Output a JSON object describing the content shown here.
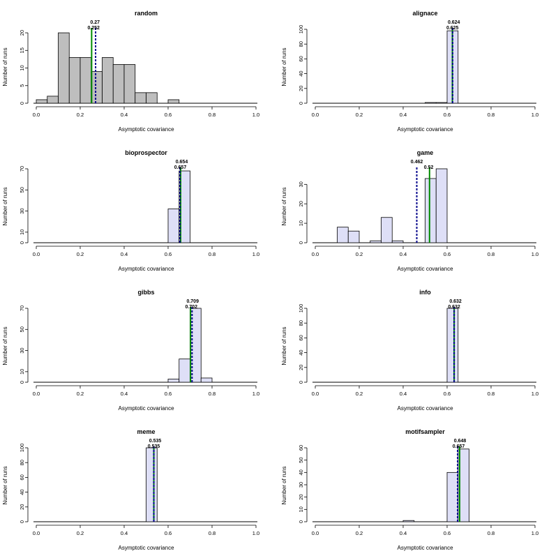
{
  "colors": {
    "random_fill": "#bebebe",
    "method_fill": "#dedff7",
    "bar_stroke": "#000000",
    "median_line": "#008b00",
    "mean_line": "#00008b"
  },
  "chart_data": [
    {
      "type": "bar",
      "title": "random",
      "xlabel": "Asymptotic covariance",
      "ylabel": "Number of runs",
      "xlim": [
        0,
        1
      ],
      "ylim": [
        0,
        21
      ],
      "yticks": [
        0,
        5,
        10,
        15,
        20
      ],
      "xticks": [
        "0.0",
        "0.2",
        "0.4",
        "0.6",
        "0.8",
        "1.0"
      ],
      "bin_width": 0.05,
      "bins_start": [
        0,
        0.05,
        0.1,
        0.15,
        0.2,
        0.25,
        0.3,
        0.35,
        0.4,
        0.45,
        0.5,
        0.55,
        0.6,
        0.65,
        0.7,
        0.75,
        0.8,
        0.85,
        0.9,
        0.95
      ],
      "values": [
        1,
        2,
        20,
        13,
        13,
        9,
        13,
        11,
        11,
        3,
        3,
        0,
        1,
        0,
        0,
        0,
        0,
        0,
        0,
        0
      ],
      "fill": "random",
      "solid_line": 0.252,
      "dotted_line": 0.27,
      "upper_label": "0.27",
      "lower_label": "0.252"
    },
    {
      "type": "bar",
      "title": "alignace",
      "xlabel": "Asymptotic covariance",
      "ylabel": "Number of runs",
      "xlim": [
        0,
        1
      ],
      "ylim": [
        0,
        100
      ],
      "yticks": [
        0,
        20,
        40,
        60,
        80,
        100
      ],
      "xticks": [
        "0.0",
        "0.2",
        "0.4",
        "0.6",
        "0.8",
        "1.0"
      ],
      "bin_width": 0.05,
      "bins_start": [
        0.5,
        0.55,
        0.6
      ],
      "values": [
        1,
        1,
        98
      ],
      "fill": "method",
      "solid_line": 0.624,
      "dotted_line": 0.625,
      "upper_label": "0.624",
      "lower_label": "0.625"
    },
    {
      "type": "bar",
      "title": "bioprospector",
      "xlabel": "Asymptotic covariance",
      "ylabel": "Number of runs",
      "xlim": [
        0,
        1
      ],
      "ylim": [
        0,
        70
      ],
      "yticks": [
        0,
        10,
        30,
        50,
        70
      ],
      "xticks": [
        "0.0",
        "0.2",
        "0.4",
        "0.6",
        "0.8",
        "1.0"
      ],
      "bin_width": 0.05,
      "bins_start": [
        0.6,
        0.65
      ],
      "values": [
        32,
        68
      ],
      "fill": "method",
      "solid_line": 0.657,
      "dotted_line": 0.654,
      "upper_label": "0.654",
      "lower_label": "0.657"
    },
    {
      "type": "bar",
      "title": "game",
      "xlabel": "Asymptotic covariance",
      "ylabel": "Number of runs",
      "xlim": [
        0,
        1
      ],
      "ylim": [
        0,
        38
      ],
      "yticks": [
        0,
        10,
        20,
        30
      ],
      "xticks": [
        "0.0",
        "0.2",
        "0.4",
        "0.6",
        "0.8",
        "1.0"
      ],
      "bin_width": 0.05,
      "bins_start": [
        0.1,
        0.15,
        0.25,
        0.3,
        0.35,
        0.5,
        0.55
      ],
      "values": [
        8,
        6,
        1,
        13,
        1,
        33,
        38
      ],
      "fill": "method",
      "solid_line": 0.52,
      "dotted_line": 0.462,
      "upper_label": "0.462",
      "right_label": "0.52"
    },
    {
      "type": "bar",
      "title": "gibbs",
      "xlabel": "Asymptotic covariance",
      "ylabel": "Number of runs",
      "xlim": [
        0,
        1
      ],
      "ylim": [
        0,
        70
      ],
      "yticks": [
        0,
        10,
        30,
        50,
        70
      ],
      "xticks": [
        "0.0",
        "0.2",
        "0.4",
        "0.6",
        "0.8",
        "1.0"
      ],
      "bin_width": 0.05,
      "bins_start": [
        0.6,
        0.65,
        0.7,
        0.75
      ],
      "values": [
        3,
        22,
        70,
        4
      ],
      "fill": "method",
      "solid_line": 0.702,
      "dotted_line": 0.709,
      "upper_label": "0.709",
      "lower_label": "0.702"
    },
    {
      "type": "bar",
      "title": "info",
      "xlabel": "Asymptotic covariance",
      "ylabel": "Number of runs",
      "xlim": [
        0,
        1
      ],
      "ylim": [
        0,
        100
      ],
      "yticks": [
        0,
        20,
        40,
        60,
        80,
        100
      ],
      "xticks": [
        "0.0",
        "0.2",
        "0.4",
        "0.6",
        "0.8",
        "1.0"
      ],
      "bin_width": 0.05,
      "bins_start": [
        0.6
      ],
      "values": [
        100
      ],
      "fill": "method",
      "solid_line": 0.632,
      "dotted_line": 0.632,
      "upper_label": "0.632",
      "lower_label": "0.632"
    },
    {
      "type": "bar",
      "title": "meme",
      "xlabel": "Asymptotic covariance",
      "ylabel": "Number of runs",
      "xlim": [
        0,
        1
      ],
      "ylim": [
        0,
        100
      ],
      "yticks": [
        0,
        20,
        40,
        60,
        80,
        100
      ],
      "xticks": [
        "0.0",
        "0.2",
        "0.4",
        "0.6",
        "0.8",
        "1.0"
      ],
      "bin_width": 0.05,
      "bins_start": [
        0.5
      ],
      "values": [
        100
      ],
      "fill": "method",
      "solid_line": 0.535,
      "dotted_line": 0.535,
      "upper_label": "0.535",
      "lower_label": "0.535"
    },
    {
      "type": "bar",
      "title": "motifsampler",
      "xlabel": "Asymptotic covariance",
      "ylabel": "Number of runs",
      "xlim": [
        0,
        1
      ],
      "ylim": [
        0,
        60
      ],
      "yticks": [
        0,
        10,
        20,
        30,
        40,
        50,
        60
      ],
      "xticks": [
        "0.0",
        "0.2",
        "0.4",
        "0.6",
        "0.8",
        "1.0"
      ],
      "bin_width": 0.05,
      "bins_start": [
        0.4,
        0.6,
        0.65
      ],
      "values": [
        1,
        40,
        59
      ],
      "fill": "method",
      "solid_line": 0.657,
      "dotted_line": 0.648,
      "upper_label": "0.648",
      "lower_label": "0.657"
    }
  ]
}
